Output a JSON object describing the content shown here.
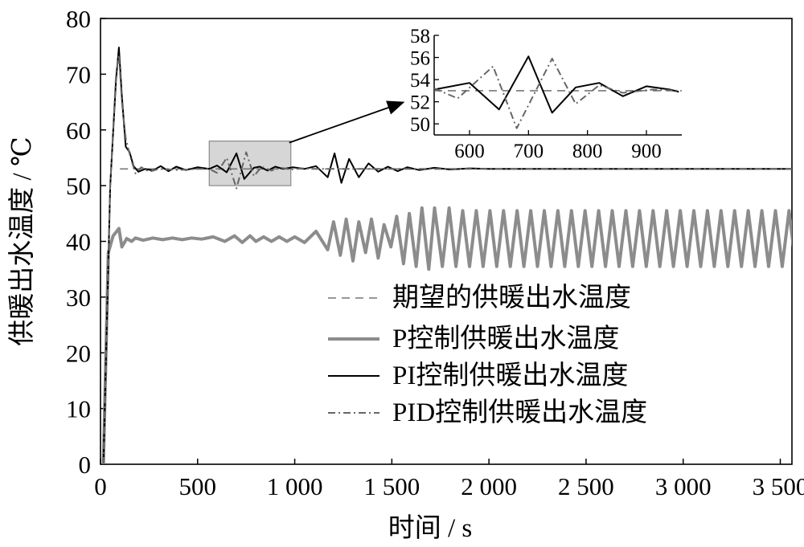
{
  "chart_data": [
    {
      "type": "line",
      "xlabel": "时间 / s",
      "ylabel": "供暖出水温度 / ℃",
      "xlim": [
        0,
        3600
      ],
      "ylim": [
        0,
        80
      ],
      "x_ticks": [
        0,
        500,
        1000,
        1500,
        2000,
        2500,
        3000,
        3500
      ],
      "x_tick_labels": [
        "0",
        "500",
        "1 000",
        "1 500",
        "2 000",
        "2 500",
        "3 000",
        "3 500"
      ],
      "y_ticks": [
        0,
        10,
        20,
        30,
        40,
        50,
        60,
        70,
        80
      ],
      "y_tick_labels": [
        "0",
        "10",
        "20",
        "30",
        "40",
        "50",
        "60",
        "70",
        "80"
      ],
      "legend_position": "right",
      "zoom_box": {
        "x": [
          560,
          980
        ],
        "y": [
          50,
          58
        ]
      },
      "series": [
        {
          "name": "期望的供暖出水温度",
          "style": "dashed",
          "color": "#777777",
          "points": [
            [
              100,
              53
            ],
            [
              3590,
              53
            ]
          ]
        },
        {
          "name": "P控制供暖出水温度",
          "style": "solid-thick",
          "color": "#8c8c8c",
          "points": [
            [
              15,
              0
            ],
            [
              40,
              38
            ],
            [
              65,
              41
            ],
            [
              95,
              42.3
            ],
            [
              110,
              39
            ],
            [
              135,
              40.5
            ],
            [
              160,
              40
            ],
            [
              180,
              40.6
            ],
            [
              220,
              40.2
            ],
            [
              270,
              40.6
            ],
            [
              320,
              40.3
            ],
            [
              370,
              40.6
            ],
            [
              420,
              40.3
            ],
            [
              470,
              40.6
            ],
            [
              520,
              40.4
            ],
            [
              580,
              40.8
            ],
            [
              640,
              40
            ],
            [
              690,
              41
            ],
            [
              730,
              39.8
            ],
            [
              770,
              41
            ],
            [
              800,
              40
            ],
            [
              840,
              40.8
            ],
            [
              880,
              40
            ],
            [
              920,
              40.8
            ],
            [
              960,
              40
            ],
            [
              1000,
              40.8
            ],
            [
              1050,
              39.8
            ],
            [
              1110,
              41.8
            ],
            [
              1170,
              38.5
            ],
            [
              1200,
              43.5
            ],
            [
              1235,
              37.5
            ],
            [
              1265,
              44
            ],
            [
              1300,
              36.5
            ],
            [
              1330,
              43.5
            ],
            [
              1365,
              38
            ],
            [
              1395,
              44
            ],
            [
              1430,
              37
            ],
            [
              1460,
              43
            ],
            [
              1495,
              39
            ],
            [
              1525,
              44.5
            ],
            [
              1560,
              36
            ],
            [
              1590,
              45
            ],
            [
              1625,
              35.5
            ],
            [
              1655,
              46
            ],
            [
              1690,
              35
            ],
            [
              1720,
              46
            ],
            [
              1760,
              35.5
            ],
            [
              1795,
              46
            ],
            [
              1830,
              35.5
            ],
            [
              1865,
              45.5
            ],
            [
              1900,
              35.5
            ],
            [
              1935,
              45.5
            ],
            [
              1970,
              35.5
            ],
            [
              2005,
              45.5
            ],
            [
              2040,
              35.5
            ],
            [
              2075,
              45.5
            ],
            [
              2110,
              35.5
            ],
            [
              2145,
              45.5
            ],
            [
              2180,
              35.5
            ],
            [
              2215,
              45.5
            ],
            [
              2250,
              35.5
            ],
            [
              2285,
              45.5
            ],
            [
              2320,
              35.5
            ],
            [
              2355,
              45.5
            ],
            [
              2390,
              35.5
            ],
            [
              2425,
              45.5
            ],
            [
              2460,
              35.5
            ],
            [
              2495,
              45.5
            ],
            [
              2530,
              35.5
            ],
            [
              2565,
              45.5
            ],
            [
              2600,
              35.5
            ],
            [
              2635,
              45.5
            ],
            [
              2670,
              35.5
            ],
            [
              2705,
              45.5
            ],
            [
              2740,
              35.5
            ],
            [
              2775,
              45.5
            ],
            [
              2810,
              35.5
            ],
            [
              2845,
              45.5
            ],
            [
              2880,
              35.5
            ],
            [
              2915,
              45.5
            ],
            [
              2950,
              35.5
            ],
            [
              2985,
              45.5
            ],
            [
              3020,
              35.5
            ],
            [
              3055,
              45.5
            ],
            [
              3090,
              35.5
            ],
            [
              3125,
              45.5
            ],
            [
              3160,
              35.5
            ],
            [
              3195,
              45.5
            ],
            [
              3230,
              35.5
            ],
            [
              3265,
              45.5
            ],
            [
              3300,
              35.5
            ],
            [
              3335,
              45.5
            ],
            [
              3370,
              35.5
            ],
            [
              3405,
              45.5
            ],
            [
              3440,
              35.5
            ],
            [
              3475,
              45.5
            ],
            [
              3510,
              35.5
            ],
            [
              3545,
              45.5
            ],
            [
              3580,
              35.5
            ],
            [
              3595,
              42.5
            ]
          ]
        },
        {
          "name": "PI控制供暖出水温度",
          "style": "solid",
          "color": "#000000",
          "points": [
            [
              15,
              0
            ],
            [
              50,
              50
            ],
            [
              80,
              69
            ],
            [
              95,
              74.8
            ],
            [
              110,
              66
            ],
            [
              130,
              57
            ],
            [
              150,
              56
            ],
            [
              170,
              53.5
            ],
            [
              195,
              52.5
            ],
            [
              230,
              53
            ],
            [
              270,
              52.7
            ],
            [
              310,
              53.5
            ],
            [
              350,
              52.6
            ],
            [
              390,
              53.4
            ],
            [
              440,
              52.8
            ],
            [
              500,
              53.3
            ],
            [
              560,
              53
            ],
            [
              600,
              53.6
            ],
            [
              650,
              52.4
            ],
            [
              700,
              55.8
            ],
            [
              740,
              51.2
            ],
            [
              790,
              53.2
            ],
            [
              820,
              53.4
            ],
            [
              860,
              52.7
            ],
            [
              900,
              53.4
            ],
            [
              940,
              53
            ],
            [
              990,
              53.3
            ],
            [
              1050,
              53
            ],
            [
              1110,
              53.5
            ],
            [
              1170,
              51.5
            ],
            [
              1205,
              55.8
            ],
            [
              1240,
              50.5
            ],
            [
              1280,
              54.8
            ],
            [
              1330,
              51.5
            ],
            [
              1380,
              54
            ],
            [
              1430,
              52.5
            ],
            [
              1480,
              53.4
            ],
            [
              1530,
              52.6
            ],
            [
              1580,
              53.3
            ],
            [
              1640,
              52.8
            ],
            [
              1720,
              53.2
            ],
            [
              1800,
              52.9
            ],
            [
              1900,
              53.1
            ],
            [
              2000,
              53
            ],
            [
              2400,
              53
            ],
            [
              3590,
              53
            ]
          ]
        },
        {
          "name": "PID控制供暖出水温度",
          "style": "dash-dot",
          "color": "#666666",
          "points": [
            [
              15,
              0
            ],
            [
              50,
              50
            ],
            [
              80,
              70
            ],
            [
              95,
              73.5
            ],
            [
              110,
              65
            ],
            [
              130,
              58.5
            ],
            [
              155,
              55
            ],
            [
              180,
              52.2
            ],
            [
              210,
              53.3
            ],
            [
              250,
              52.5
            ],
            [
              300,
              53
            ],
            [
              400,
              52.8
            ],
            [
              500,
              53
            ],
            [
              560,
              53
            ],
            [
              600,
              52.3
            ],
            [
              650,
              55
            ],
            [
              700,
              49.5
            ],
            [
              750,
              56
            ],
            [
              790,
              51.7
            ],
            [
              830,
              53.4
            ],
            [
              880,
              52.7
            ],
            [
              930,
              53.2
            ],
            [
              980,
              52.9
            ],
            [
              1040,
              53.1
            ],
            [
              1100,
              53
            ],
            [
              1500,
              53
            ],
            [
              3590,
              53
            ]
          ]
        }
      ]
    },
    {
      "type": "line",
      "role": "inset",
      "xlim": [
        540,
        960
      ],
      "ylim": [
        49,
        58
      ],
      "x_ticks": [
        600,
        700,
        800,
        900
      ],
      "x_tick_labels": [
        "600",
        "700",
        "800",
        "900"
      ],
      "y_ticks": [
        50,
        52,
        54,
        56,
        58
      ],
      "y_tick_labels": [
        "50",
        "52",
        "54",
        "56",
        "58"
      ],
      "series": [
        {
          "style": "dashed",
          "color": "#777777",
          "points": [
            [
              540,
              53
            ],
            [
              960,
              53
            ]
          ]
        },
        {
          "style": "solid",
          "color": "#000000",
          "points": [
            [
              540,
              53.1
            ],
            [
              600,
              53.7
            ],
            [
              650,
              51.3
            ],
            [
              700,
              56.1
            ],
            [
              740,
              51.0
            ],
            [
              780,
              53.3
            ],
            [
              820,
              53.7
            ],
            [
              860,
              52.5
            ],
            [
              900,
              53.4
            ],
            [
              940,
              53.1
            ],
            [
              955,
              52.9
            ]
          ]
        },
        {
          "style": "dash-dot",
          "color": "#666666",
          "points": [
            [
              540,
              53.2
            ],
            [
              580,
              52.3
            ],
            [
              640,
              55.2
            ],
            [
              680,
              49.6
            ],
            [
              740,
              55.9
            ],
            [
              780,
              51.8
            ],
            [
              820,
              53.5
            ],
            [
              860,
              52.8
            ],
            [
              910,
              53.1
            ],
            [
              955,
              53
            ]
          ]
        }
      ]
    }
  ]
}
